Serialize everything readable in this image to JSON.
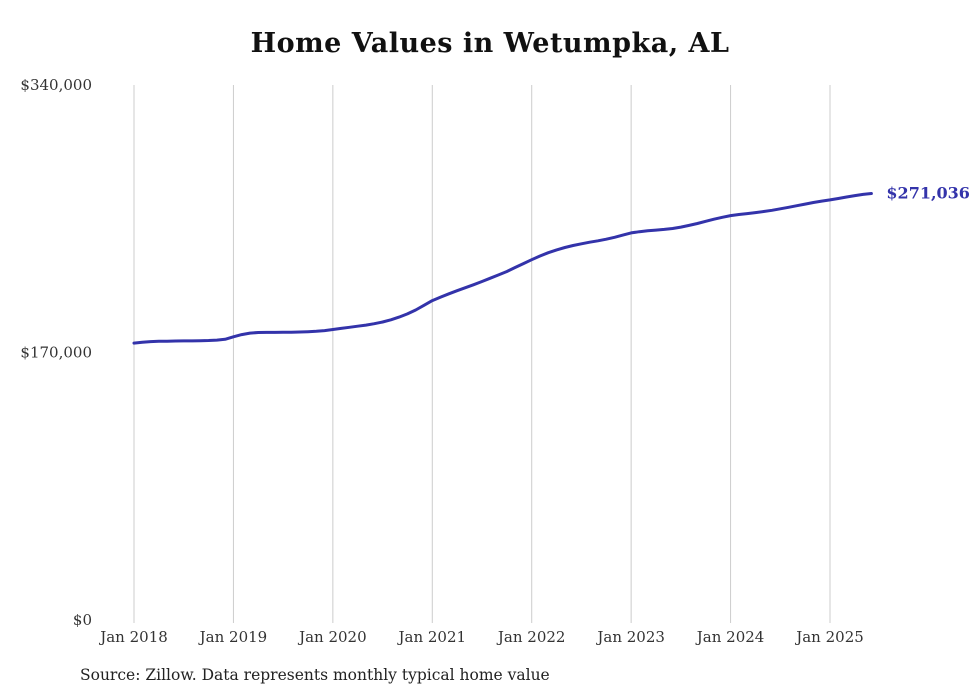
{
  "chart_data": {
    "type": "line",
    "title": "Home Values in Wetumpka, AL",
    "xlabel": "",
    "ylabel": "",
    "ylim": [
      0,
      340000
    ],
    "grid": "vertical-only",
    "legend": "none",
    "line_color": "#3333aa",
    "gridline_color": "#cccccc",
    "x_tick_labels": [
      "Jan 2018",
      "Jan 2019",
      "Jan 2020",
      "Jan 2021",
      "Jan 2022",
      "Jan 2023",
      "Jan 2024",
      "Jan 2025"
    ],
    "y_ticks": [
      {
        "label": "$340,000",
        "value": 340000
      },
      {
        "label": "$170,000",
        "value": 170000
      },
      {
        "label": "$0",
        "value": 0
      }
    ],
    "end_label": "$271,036",
    "frequency": "monthly",
    "x_start": "Jan 2018",
    "x_end": "Jun 2025",
    "series": [
      {
        "name": "Typical home value",
        "values": [
          176000,
          176500,
          176900,
          177100,
          177200,
          177300,
          177400,
          177400,
          177500,
          177600,
          177900,
          178400,
          180000,
          181400,
          182300,
          182700,
          182800,
          182800,
          182900,
          182900,
          183000,
          183200,
          183500,
          183900,
          184600,
          185300,
          186000,
          186700,
          187400,
          188300,
          189400,
          190800,
          192500,
          194500,
          197000,
          200000,
          203000,
          205200,
          207300,
          209300,
          211200,
          213100,
          215100,
          217200,
          219300,
          221500,
          224000,
          226500,
          229000,
          231300,
          233400,
          235200,
          236700,
          238000,
          239100,
          240100,
          241000,
          242000,
          243200,
          244600,
          246000,
          246800,
          247400,
          247800,
          248200,
          248800,
          249700,
          250800,
          252000,
          253400,
          254700,
          255900,
          257000,
          257700,
          258300,
          258900,
          259600,
          260400,
          261300,
          262300,
          263300,
          264300,
          265300,
          266200,
          267000,
          267900,
          268800,
          269700,
          270450,
          271036
        ]
      }
    ]
  },
  "source_note": "Source: Zillow. Data represents monthly typical home value"
}
